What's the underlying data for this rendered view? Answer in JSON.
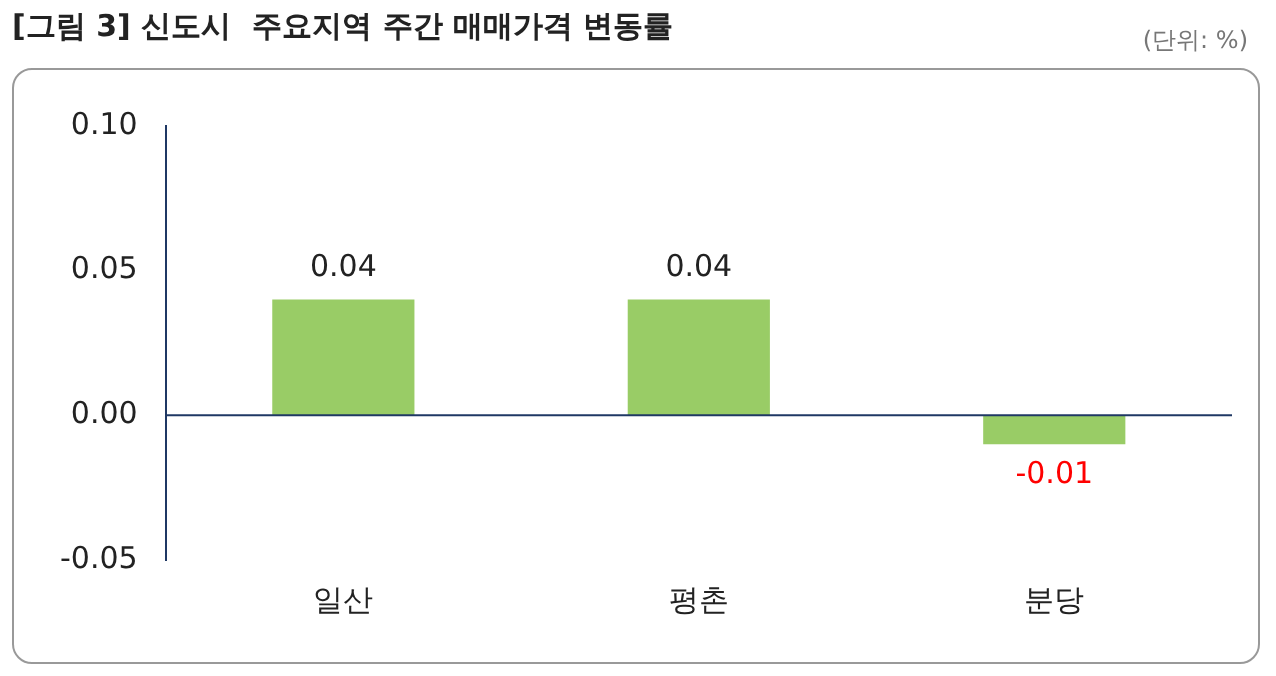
{
  "chart_data": {
    "type": "bar",
    "title": "[그림 3] 신도시  주요지역 주간 매매가격 변동률",
    "subtitle": "(단위: %)",
    "categories": [
      "일산",
      "평촌",
      "분당"
    ],
    "values": [
      0.04,
      0.04,
      -0.01
    ],
    "color": "#99cc66",
    "ylim": [
      -0.05,
      0.1
    ],
    "yticks": [
      -0.05,
      {
        "value": 0,
        "label": "0.00"
      },
      0.05,
      {
        "value": 0.1,
        "label": "0.10"
      }
    ],
    "grid": false,
    "data_labels": true,
    "ref_lines": [
      {
        "axis": "y",
        "value": 0,
        "color": "#1f3864"
      }
    ]
  }
}
